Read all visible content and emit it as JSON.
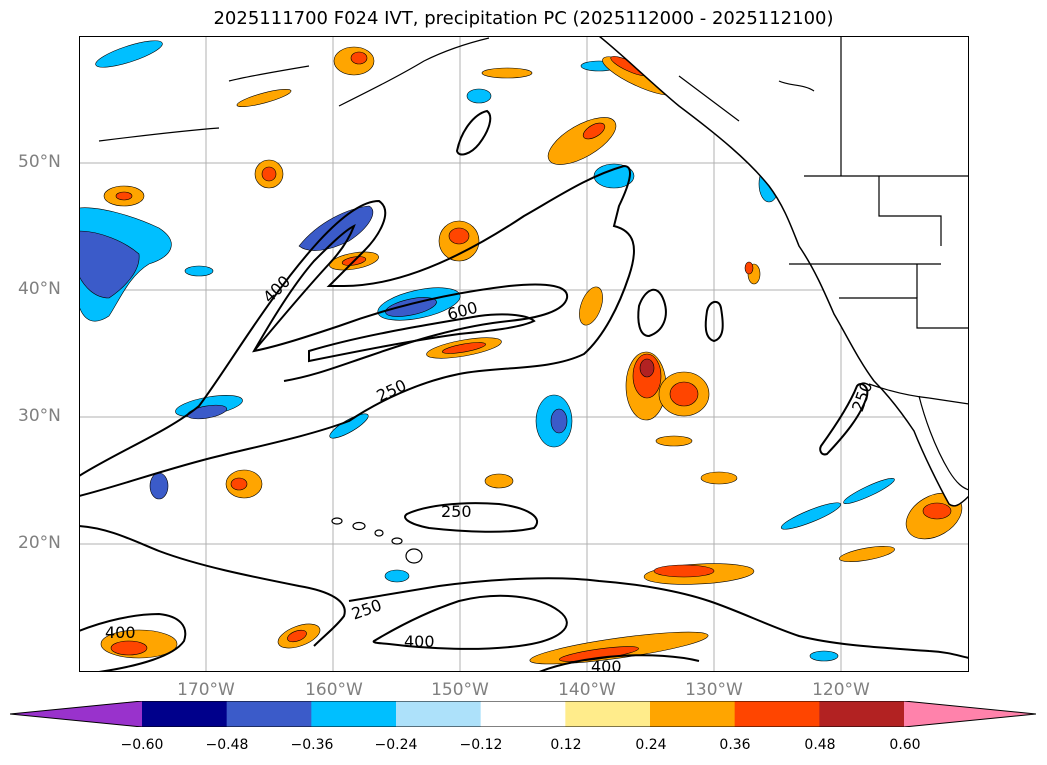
{
  "title": "2025111700 F024 IVT, precipitation PC (2025112000 - 2025112100)",
  "lat_labels": [
    "50°N",
    "40°N",
    "30°N",
    "20°N"
  ],
  "lon_labels": [
    "170°W",
    "160°W",
    "150°W",
    "140°W",
    "130°W",
    "120°W"
  ],
  "ivt_contour_labels": [
    "400",
    "600",
    "250",
    "250",
    "250",
    "250",
    "400",
    "400",
    "400"
  ],
  "colorbar": {
    "ticks": [
      "−0.60",
      "−0.48",
      "−0.36",
      "−0.24",
      "−0.12",
      "0.12",
      "0.24",
      "0.36",
      "0.48",
      "0.60"
    ],
    "colors": [
      "#9932CC",
      "#00008B",
      "#3B5BC9",
      "#00BFFF",
      "#ADE1FA",
      "#FFFFFF",
      "#FFEC8B",
      "#FFA500",
      "#FF4500",
      "#B22222",
      "#FF82AB"
    ]
  }
}
